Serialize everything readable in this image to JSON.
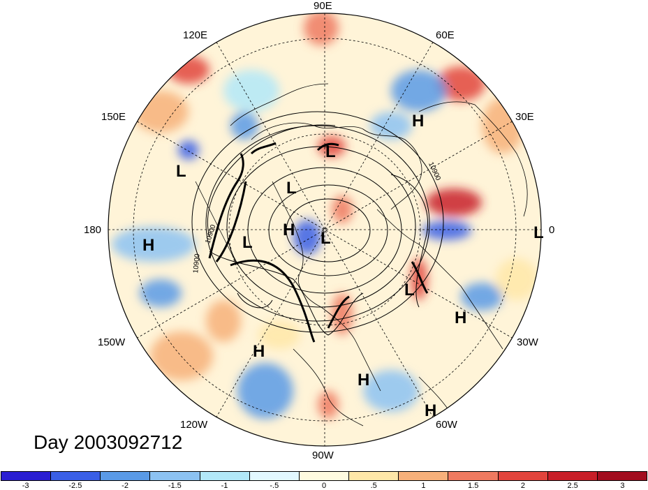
{
  "title": "Day 2003092712",
  "longitude_labels": [
    {
      "id": "lon-90e",
      "text": "90E"
    },
    {
      "id": "lon-60e",
      "text": "60E"
    },
    {
      "id": "lon-30e",
      "text": "30E"
    },
    {
      "id": "lon-0",
      "text": "0"
    },
    {
      "id": "lon-30w",
      "text": "30W"
    },
    {
      "id": "lon-60w",
      "text": "60W"
    },
    {
      "id": "lon-90w",
      "text": "90W"
    },
    {
      "id": "lon-120w",
      "text": "120W"
    },
    {
      "id": "lon-150w",
      "text": "150W"
    },
    {
      "id": "lon-180",
      "text": "180"
    },
    {
      "id": "lon-150e",
      "text": "150E"
    },
    {
      "id": "lon-120e",
      "text": "120E"
    }
  ],
  "pressure_centers": [
    {
      "label": "H"
    },
    {
      "label": "L"
    },
    {
      "label": "L"
    },
    {
      "label": "L"
    },
    {
      "label": "H"
    },
    {
      "label": "L"
    },
    {
      "label": "L"
    },
    {
      "label": "H"
    },
    {
      "label": "L"
    },
    {
      "label": "H"
    },
    {
      "label": "H"
    },
    {
      "label": "H"
    },
    {
      "label": "H"
    },
    {
      "label": "L"
    }
  ],
  "contour_labels": [
    "10900",
    "10900",
    "10900"
  ],
  "colorbar": {
    "colors": [
      "#2a1ed2",
      "#3a5fe6",
      "#5a9ae6",
      "#8cc2f2",
      "#b2e8f8",
      "#e2f8ff",
      "#fffbe0",
      "#ffe7a8",
      "#f7b07a",
      "#ef7a60",
      "#e2443c",
      "#c81e28",
      "#a20c1e"
    ],
    "ticks": [
      "-3",
      "-2.5",
      "-2",
      "-1.5",
      "-1",
      "-.5",
      "0",
      ".5",
      "1",
      "1.5",
      "2",
      "2.5",
      "3"
    ]
  }
}
